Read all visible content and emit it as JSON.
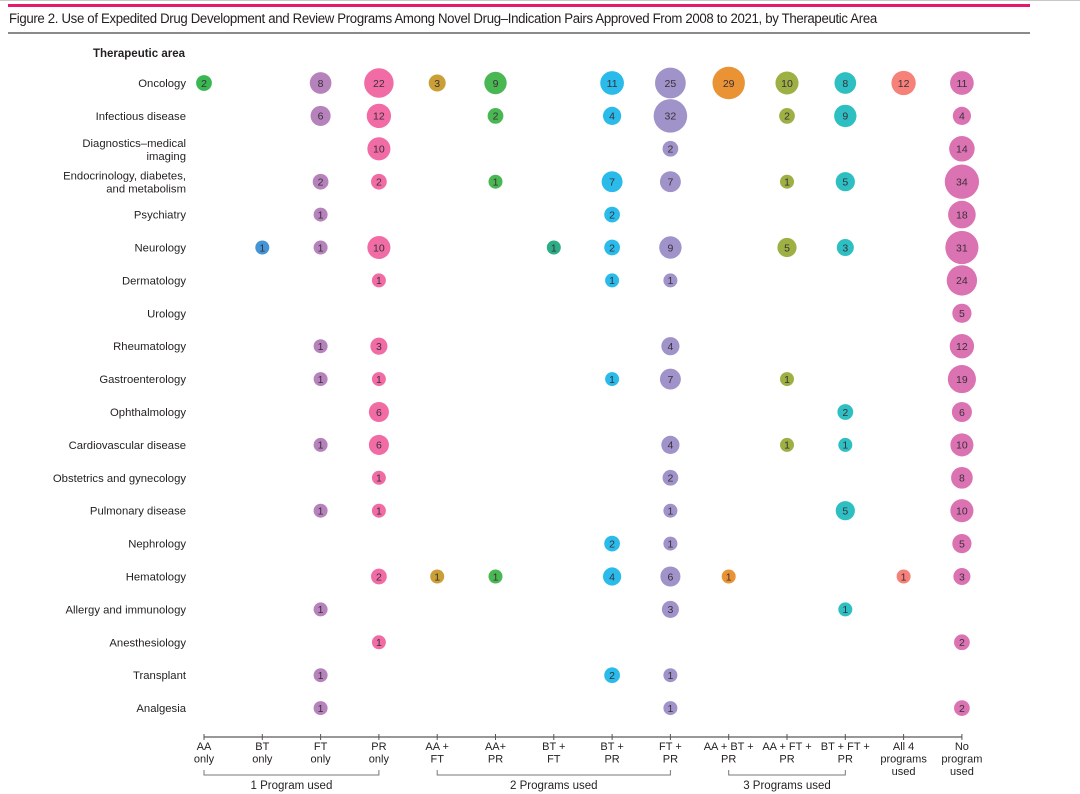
{
  "figure": {
    "title": "Figure 2. Use of Expedited Drug Development and Review Programs Among Novel Drug–Indication Pairs Approved From 2008 to 2021, by Therapeutic Area"
  },
  "chart_data": {
    "type": "bubble-matrix",
    "title": "Figure 2. Use of Expedited Drug Development and Review Programs Among Novel Drug–Indication Pairs Approved From 2008 to 2021, by Therapeutic Area",
    "ylabel": "Therapeutic area",
    "xlabel": "",
    "categories": [
      {
        "key": "aa_only",
        "label": [
          "AA",
          "only"
        ],
        "color": "#2db34a"
      },
      {
        "key": "bt_only",
        "label": [
          "BT",
          "only"
        ],
        "color": "#3a8fd4"
      },
      {
        "key": "ft_only",
        "label": [
          "FT",
          "only"
        ],
        "color": "#b27bb8"
      },
      {
        "key": "pr_only",
        "label": [
          "PR",
          "only"
        ],
        "color": "#f064a0"
      },
      {
        "key": "aa_ft",
        "label": [
          "AA +",
          "FT"
        ],
        "color": "#c79a2a"
      },
      {
        "key": "aa_pr",
        "label": [
          "AA+",
          "PR"
        ],
        "color": "#3fb44a"
      },
      {
        "key": "bt_ft",
        "label": [
          "BT +",
          "FT"
        ],
        "color": "#22a97e"
      },
      {
        "key": "bt_pr",
        "label": [
          "BT +",
          "PR"
        ],
        "color": "#1fb7e9"
      },
      {
        "key": "ft_pr",
        "label": [
          "FT +",
          "PR"
        ],
        "color": "#9b8dc6"
      },
      {
        "key": "aa_bt_pr",
        "label": [
          "AA + BT +",
          "PR"
        ],
        "color": "#e88d2a"
      },
      {
        "key": "aa_ft_pr",
        "label": [
          "AA + FT +",
          "PR"
        ],
        "color": "#98ac3a"
      },
      {
        "key": "bt_ft_pr",
        "label": [
          "BT + FT +",
          "PR"
        ],
        "color": "#22bcbf"
      },
      {
        "key": "all4",
        "label": [
          "All 4",
          "programs",
          "used"
        ],
        "color": "#f47a72"
      },
      {
        "key": "none",
        "label": [
          "No",
          "program",
          "used"
        ],
        "color": "#d96caf"
      }
    ],
    "groups": [
      {
        "label": "1 Program used",
        "from": 0,
        "to": 3
      },
      {
        "label": "2 Programs used",
        "from": 4,
        "to": 8
      },
      {
        "label": "3 Programs used",
        "from": 9,
        "to": 11
      }
    ],
    "rows": [
      {
        "label": [
          "Oncology"
        ],
        "values": [
          2,
          null,
          8,
          22,
          3,
          9,
          null,
          11,
          25,
          29,
          10,
          8,
          12,
          11
        ]
      },
      {
        "label": [
          "Infectious disease"
        ],
        "values": [
          null,
          null,
          6,
          12,
          null,
          2,
          null,
          4,
          32,
          null,
          2,
          9,
          null,
          4
        ]
      },
      {
        "label": [
          "Diagnostics–medical",
          "imaging"
        ],
        "values": [
          null,
          null,
          null,
          10,
          null,
          null,
          null,
          null,
          2,
          null,
          null,
          null,
          null,
          14
        ]
      },
      {
        "label": [
          "Endocrinology, diabetes,",
          "and metabolism"
        ],
        "values": [
          null,
          null,
          2,
          2,
          null,
          1,
          null,
          7,
          7,
          null,
          1,
          5,
          null,
          34
        ]
      },
      {
        "label": [
          "Psychiatry"
        ],
        "values": [
          null,
          null,
          1,
          null,
          null,
          null,
          null,
          2,
          null,
          null,
          null,
          null,
          null,
          18
        ]
      },
      {
        "label": [
          "Neurology"
        ],
        "values": [
          null,
          1,
          1,
          10,
          null,
          null,
          1,
          2,
          9,
          null,
          5,
          3,
          null,
          31
        ]
      },
      {
        "label": [
          "Dermatology"
        ],
        "values": [
          null,
          null,
          null,
          1,
          null,
          null,
          null,
          1,
          1,
          null,
          null,
          null,
          null,
          24
        ]
      },
      {
        "label": [
          "Urology"
        ],
        "values": [
          null,
          null,
          null,
          null,
          null,
          null,
          null,
          null,
          null,
          null,
          null,
          null,
          null,
          5
        ]
      },
      {
        "label": [
          "Rheumatology"
        ],
        "values": [
          null,
          null,
          1,
          3,
          null,
          null,
          null,
          null,
          4,
          null,
          null,
          null,
          null,
          12
        ]
      },
      {
        "label": [
          "Gastroenterology"
        ],
        "values": [
          null,
          null,
          1,
          1,
          null,
          null,
          null,
          1,
          7,
          null,
          1,
          null,
          null,
          19
        ]
      },
      {
        "label": [
          "Ophthalmology"
        ],
        "values": [
          null,
          null,
          null,
          6,
          null,
          null,
          null,
          null,
          null,
          null,
          null,
          2,
          null,
          6
        ]
      },
      {
        "label": [
          "Cardiovascular disease"
        ],
        "values": [
          null,
          null,
          1,
          6,
          null,
          null,
          null,
          null,
          4,
          null,
          1,
          1,
          null,
          10
        ]
      },
      {
        "label": [
          "Obstetrics and gynecology"
        ],
        "values": [
          null,
          null,
          null,
          1,
          null,
          null,
          null,
          null,
          2,
          null,
          null,
          null,
          null,
          8
        ]
      },
      {
        "label": [
          "Pulmonary disease"
        ],
        "values": [
          null,
          null,
          1,
          1,
          null,
          null,
          null,
          null,
          1,
          null,
          null,
          5,
          null,
          10
        ]
      },
      {
        "label": [
          "Nephrology"
        ],
        "values": [
          null,
          null,
          null,
          null,
          null,
          null,
          null,
          2,
          1,
          null,
          null,
          null,
          null,
          5
        ]
      },
      {
        "label": [
          "Hematology"
        ],
        "values": [
          null,
          null,
          null,
          2,
          1,
          1,
          null,
          4,
          6,
          1,
          null,
          null,
          1,
          3
        ]
      },
      {
        "label": [
          "Allergy and immunology"
        ],
        "values": [
          null,
          null,
          1,
          null,
          null,
          null,
          null,
          null,
          3,
          null,
          null,
          1,
          null,
          null
        ]
      },
      {
        "label": [
          "Anesthesiology"
        ],
        "values": [
          null,
          null,
          null,
          1,
          null,
          null,
          null,
          null,
          null,
          null,
          null,
          null,
          null,
          2
        ]
      },
      {
        "label": [
          "Transplant"
        ],
        "values": [
          null,
          null,
          1,
          null,
          null,
          null,
          null,
          2,
          1,
          null,
          null,
          null,
          null,
          null
        ]
      },
      {
        "label": [
          "Analgesia"
        ],
        "values": [
          null,
          null,
          1,
          null,
          null,
          null,
          null,
          null,
          1,
          null,
          null,
          null,
          null,
          2
        ]
      }
    ],
    "size_encoding": "bubble area proportional to count",
    "grid": false,
    "legend": "none"
  }
}
